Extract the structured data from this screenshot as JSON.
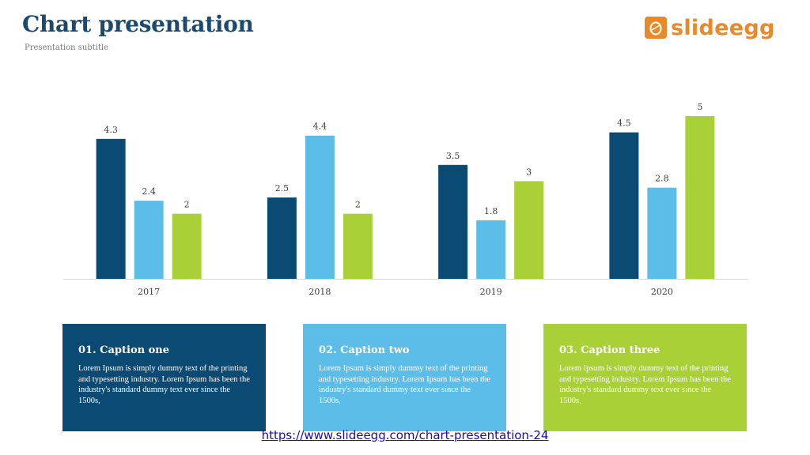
{
  "header": {
    "title": "Chart presentation",
    "subtitle": "Presentation subtitle"
  },
  "logo": {
    "text": "slideegg",
    "icon": "egg-logo-icon",
    "color": "#e8892a"
  },
  "chart_data": {
    "type": "bar",
    "categories": [
      "2017",
      "2018",
      "2019",
      "2020"
    ],
    "series": [
      {
        "values": [
          4.3,
          2.5,
          3.5,
          4.5
        ],
        "color": "#0b4a73"
      },
      {
        "values": [
          2.4,
          4.4,
          1.8,
          2.8
        ],
        "color": "#5dbde9"
      },
      {
        "values": [
          2,
          2,
          3,
          5
        ],
        "color": "#a9d037"
      }
    ],
    "title": "",
    "xlabel": "",
    "ylabel": "",
    "ylim": [
      0,
      5
    ],
    "grid": false,
    "legend": "none",
    "data_labels": true
  },
  "captions": [
    {
      "title": "01. Caption one",
      "text": "Lorem Ipsum is simply dummy text of the printing and typesetting industry. Lorem Ipsum has been the industry's standard dummy text ever since the 1500s,",
      "color": "#0b4a73"
    },
    {
      "title": "02. Caption two",
      "text": "Lorem Ipsum is simply dummy text of the printing and typesetting industry. Lorem Ipsum has been the industry's standard dummy text ever since the 1500s,",
      "color": "#5dbde9"
    },
    {
      "title": "03. Caption three",
      "text": "Lorem Ipsum is simply dummy text of the printing and typesetting industry. Lorem Ipsum has been the industry's standard dummy text ever since the 1500s,",
      "color": "#a9d037"
    }
  ],
  "footer": {
    "link": "https://www.slideegg.com/chart-presentation-24"
  }
}
